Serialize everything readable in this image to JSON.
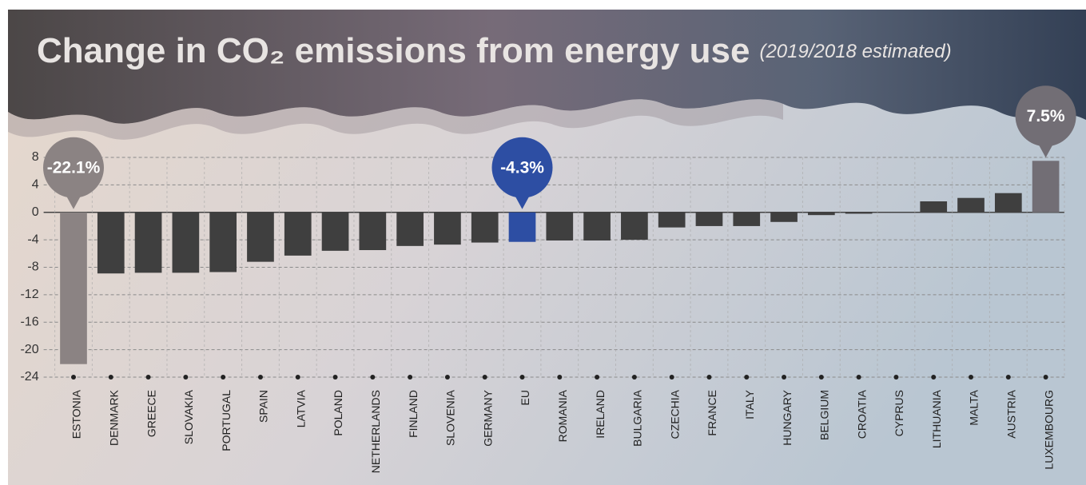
{
  "chart_data": {
    "type": "bar",
    "title": "Change in CO₂ emissions from energy use",
    "subtitle": "(2019/2018 estimated)",
    "categories": [
      "ESTONIA",
      "DENMARK",
      "GREECE",
      "SLOVAKIA",
      "PORTUGAL",
      "SPAIN",
      "LATVIA",
      "POLAND",
      "NETHERLANDS",
      "FINLAND",
      "SLOVENIA",
      "GERMANY",
      "EU",
      "ROMANIA",
      "IRELAND",
      "BULGARIA",
      "CZECHIA",
      "FRANCE",
      "ITALY",
      "HUNGARY",
      "BELGIUM",
      "CROATIA",
      "CYPRUS",
      "LITHUANIA",
      "MALTA",
      "AUSTRIA",
      "LUXEMBOURG"
    ],
    "values": [
      -22.1,
      -8.9,
      -8.8,
      -8.8,
      -8.7,
      -7.2,
      -6.3,
      -5.6,
      -5.5,
      -4.9,
      -4.7,
      -4.4,
      -4.3,
      -4.1,
      -4.1,
      -4.0,
      -2.2,
      -2.0,
      -2.0,
      -1.4,
      -0.4,
      -0.2,
      0.0,
      1.6,
      2.1,
      2.8,
      7.5
    ],
    "value_labels": [
      "-22.1%",
      null,
      null,
      null,
      null,
      null,
      null,
      null,
      null,
      null,
      null,
      null,
      "-4.3%",
      null,
      null,
      null,
      null,
      null,
      null,
      null,
      null,
      null,
      null,
      null,
      null,
      null,
      "7.5%"
    ],
    "colors": [
      "#8b8383",
      "#3f3f3f",
      "#3f3f3f",
      "#3f3f3f",
      "#3f3f3f",
      "#3f3f3f",
      "#3f3f3f",
      "#3f3f3f",
      "#3f3f3f",
      "#3f3f3f",
      "#3f3f3f",
      "#3f3f3f",
      "#2d4ea3",
      "#3f3f3f",
      "#3f3f3f",
      "#3f3f3f",
      "#3f3f3f",
      "#3f3f3f",
      "#3f3f3f",
      "#3f3f3f",
      "#3f3f3f",
      "#3f3f3f",
      "#3f3f3f",
      "#3f3f3f",
      "#3f3f3f",
      "#3f3f3f",
      "#726e75"
    ],
    "ylim": [
      -24,
      8
    ],
    "yticks": [
      8,
      4,
      0,
      -4,
      -8,
      -12,
      -16,
      -20,
      -24
    ],
    "grid": true
  }
}
